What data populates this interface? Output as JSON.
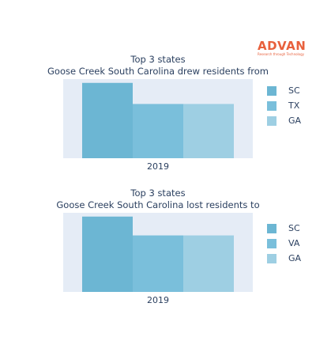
{
  "logo": {
    "word": "ADVAN",
    "tagline": "Research through Technology"
  },
  "chart_data": [
    {
      "type": "bar",
      "title": "Top 3 states",
      "subtitle": "Goose Creek South Carolina drew residents from",
      "categories": [
        "2019"
      ],
      "series": [
        {
          "name": "SC",
          "values": [
            1.0
          ],
          "color": "#6cb6d3"
        },
        {
          "name": "TX",
          "values": [
            0.72
          ],
          "color": "#7abfdb"
        },
        {
          "name": "GA",
          "values": [
            0.72
          ],
          "color": "#9ecfe3"
        }
      ],
      "ylim": [
        0,
        1.05
      ],
      "plot_background": "#e5ecf6",
      "grid": false,
      "legend_position": "right"
    },
    {
      "type": "bar",
      "title": "Top 3 states",
      "subtitle": "Goose Creek South Carolina lost residents to",
      "categories": [
        "2019"
      ],
      "series": [
        {
          "name": "SC",
          "values": [
            1.0
          ],
          "color": "#6cb6d3"
        },
        {
          "name": "VA",
          "values": [
            0.75
          ],
          "color": "#7abfdb"
        },
        {
          "name": "GA",
          "values": [
            0.75
          ],
          "color": "#9ecfe3"
        }
      ],
      "ylim": [
        0,
        1.05
      ],
      "plot_background": "#e5ecf6",
      "grid": false,
      "legend_position": "right"
    }
  ]
}
